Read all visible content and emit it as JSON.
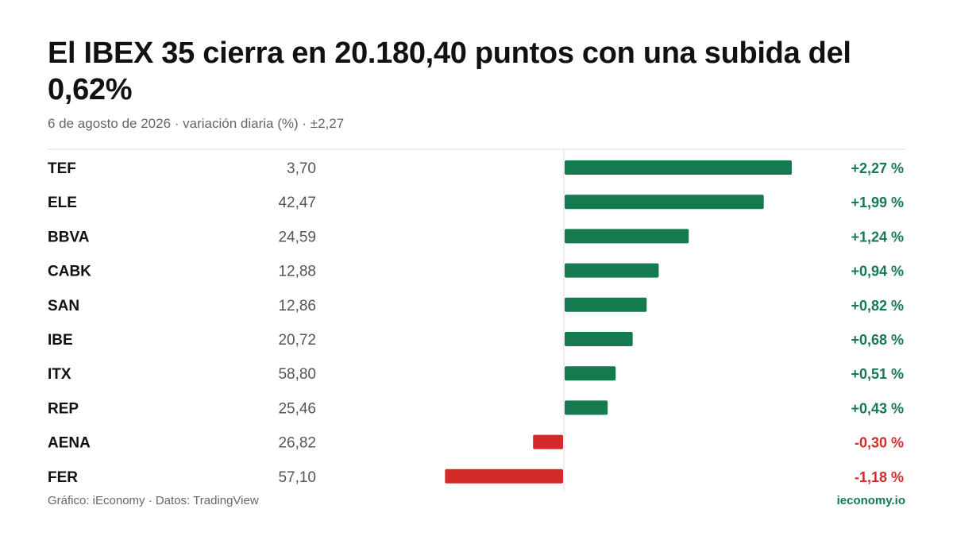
{
  "title": "El IBEX 35 cierra en 20.180,40  puntos con una subida del 0,62%",
  "subtitle": "6 de agosto de 2026 · variación diaria (%) · ±2,27",
  "footer": {
    "source": "Gráfico: iEconomy · Datos: TradingView",
    "brand": "ieconomy.io"
  },
  "colors": {
    "positive": "#157a4f",
    "negative": "#d42a2a",
    "grid": "#dddddd",
    "ticker": "#111111",
    "price": "#555555"
  },
  "chart_data": {
    "type": "bar",
    "orientation": "horizontal",
    "xlim": [
      -2.27,
      2.27
    ],
    "rows": [
      {
        "ticker": "TEF",
        "price": "3,70",
        "value": 2.27,
        "label": "+2,27 %"
      },
      {
        "ticker": "ELE",
        "price": "42,47",
        "value": 1.99,
        "label": "+1,99 %"
      },
      {
        "ticker": "BBVA",
        "price": "24,59",
        "value": 1.24,
        "label": "+1,24 %"
      },
      {
        "ticker": "CABK",
        "price": "12,88",
        "value": 0.94,
        "label": "+0,94 %"
      },
      {
        "ticker": "SAN",
        "price": "12,86",
        "value": 0.82,
        "label": "+0,82 %"
      },
      {
        "ticker": "IBE",
        "price": "20,72",
        "value": 0.68,
        "label": "+0,68 %"
      },
      {
        "ticker": "ITX",
        "price": "58,80",
        "value": 0.51,
        "label": "+0,51 %"
      },
      {
        "ticker": "REP",
        "price": "25,46",
        "value": 0.43,
        "label": "+0,43 %"
      },
      {
        "ticker": "AENA",
        "price": "26,82",
        "value": -0.3,
        "label": "-0,30 %"
      },
      {
        "ticker": "FER",
        "price": "57,10",
        "value": -1.18,
        "label": "-1,18 %"
      }
    ]
  }
}
